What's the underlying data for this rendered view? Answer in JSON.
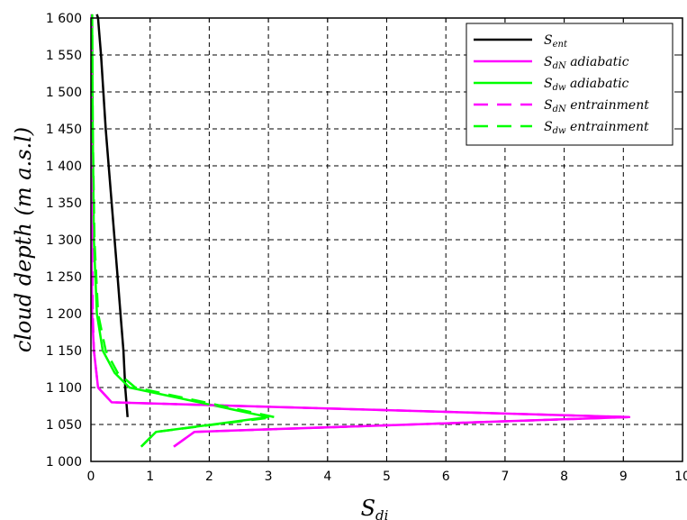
{
  "chart_data": {
    "type": "line",
    "xlabel": "S",
    "xlabel_sub": "di",
    "ylabel": "cloud depth (m a.s.l)",
    "xlim": [
      0,
      10
    ],
    "ylim": [
      1000,
      1600
    ],
    "xticks": [
      0,
      1,
      2,
      3,
      4,
      5,
      6,
      7,
      8,
      9,
      10
    ],
    "xtick_labels": [
      "0",
      "1",
      "2",
      "3",
      "4",
      "5",
      "6",
      "7",
      "8",
      "9",
      "10"
    ],
    "yticks": [
      1000,
      1050,
      1100,
      1150,
      1200,
      1250,
      1300,
      1350,
      1400,
      1450,
      1500,
      1550,
      1600
    ],
    "ytick_labels": [
      "1 000",
      "1 050",
      "1 100",
      "1 150",
      "1 200",
      "1 250",
      "1 300",
      "1 350",
      "1 400",
      "1 450",
      "1 500",
      "1 550",
      "1 600"
    ],
    "grid": true,
    "legend_position": "top-right",
    "series": [
      {
        "name": "S",
        "name_sub": "ent",
        "name_suffix": "",
        "color": "#000000",
        "dash": "solid",
        "x": [
          0.62,
          0.58,
          0.55,
          0.5,
          0.45,
          0.4,
          0.35,
          0.3,
          0.25,
          0.21,
          0.17,
          0.14,
          0.12,
          0.1
        ],
        "y": [
          1060,
          1100,
          1150,
          1200,
          1250,
          1300,
          1350,
          1400,
          1450,
          1500,
          1550,
          1580,
          1600,
          1605
        ]
      },
      {
        "name": "S",
        "name_sub": "dN",
        "name_suffix": " adiabatic",
        "color": "#ff00ff",
        "dash": "solid",
        "x": [
          1.4,
          1.75,
          9.1,
          0.35,
          0.12,
          0.05,
          0.02,
          0.01,
          0.01,
          0.01
        ],
        "y": [
          1020,
          1040,
          1060,
          1080,
          1100,
          1150,
          1200,
          1300,
          1450,
          1605
        ]
      },
      {
        "name": "S",
        "name_sub": "dw",
        "name_suffix": " adiabatic",
        "color": "#00ff00",
        "dash": "solid",
        "x": [
          0.85,
          1.1,
          3.0,
          0.65,
          0.4,
          0.2,
          0.1,
          0.05,
          0.03,
          0.02
        ],
        "y": [
          1020,
          1040,
          1060,
          1100,
          1120,
          1150,
          1200,
          1300,
          1450,
          1605
        ]
      },
      {
        "name": "S",
        "name_sub": "dN",
        "name_suffix": " entrainment",
        "color": "#ff00ff",
        "dash": "dashed",
        "x": [
          1.4,
          1.75,
          9.1,
          0.35,
          0.12,
          0.05,
          0.03,
          0.02,
          0.01,
          0.01
        ],
        "y": [
          1020,
          1040,
          1060,
          1080,
          1100,
          1150,
          1200,
          1300,
          1450,
          1605
        ]
      },
      {
        "name": "S",
        "name_sub": "dw",
        "name_suffix": " entrainment",
        "color": "#00ff00",
        "dash": "dashed",
        "x": [
          0.85,
          1.1,
          3.1,
          0.75,
          0.45,
          0.25,
          0.12,
          0.06,
          0.03,
          0.02
        ],
        "y": [
          1020,
          1040,
          1060,
          1100,
          1120,
          1150,
          1200,
          1300,
          1450,
          1605
        ]
      }
    ]
  }
}
